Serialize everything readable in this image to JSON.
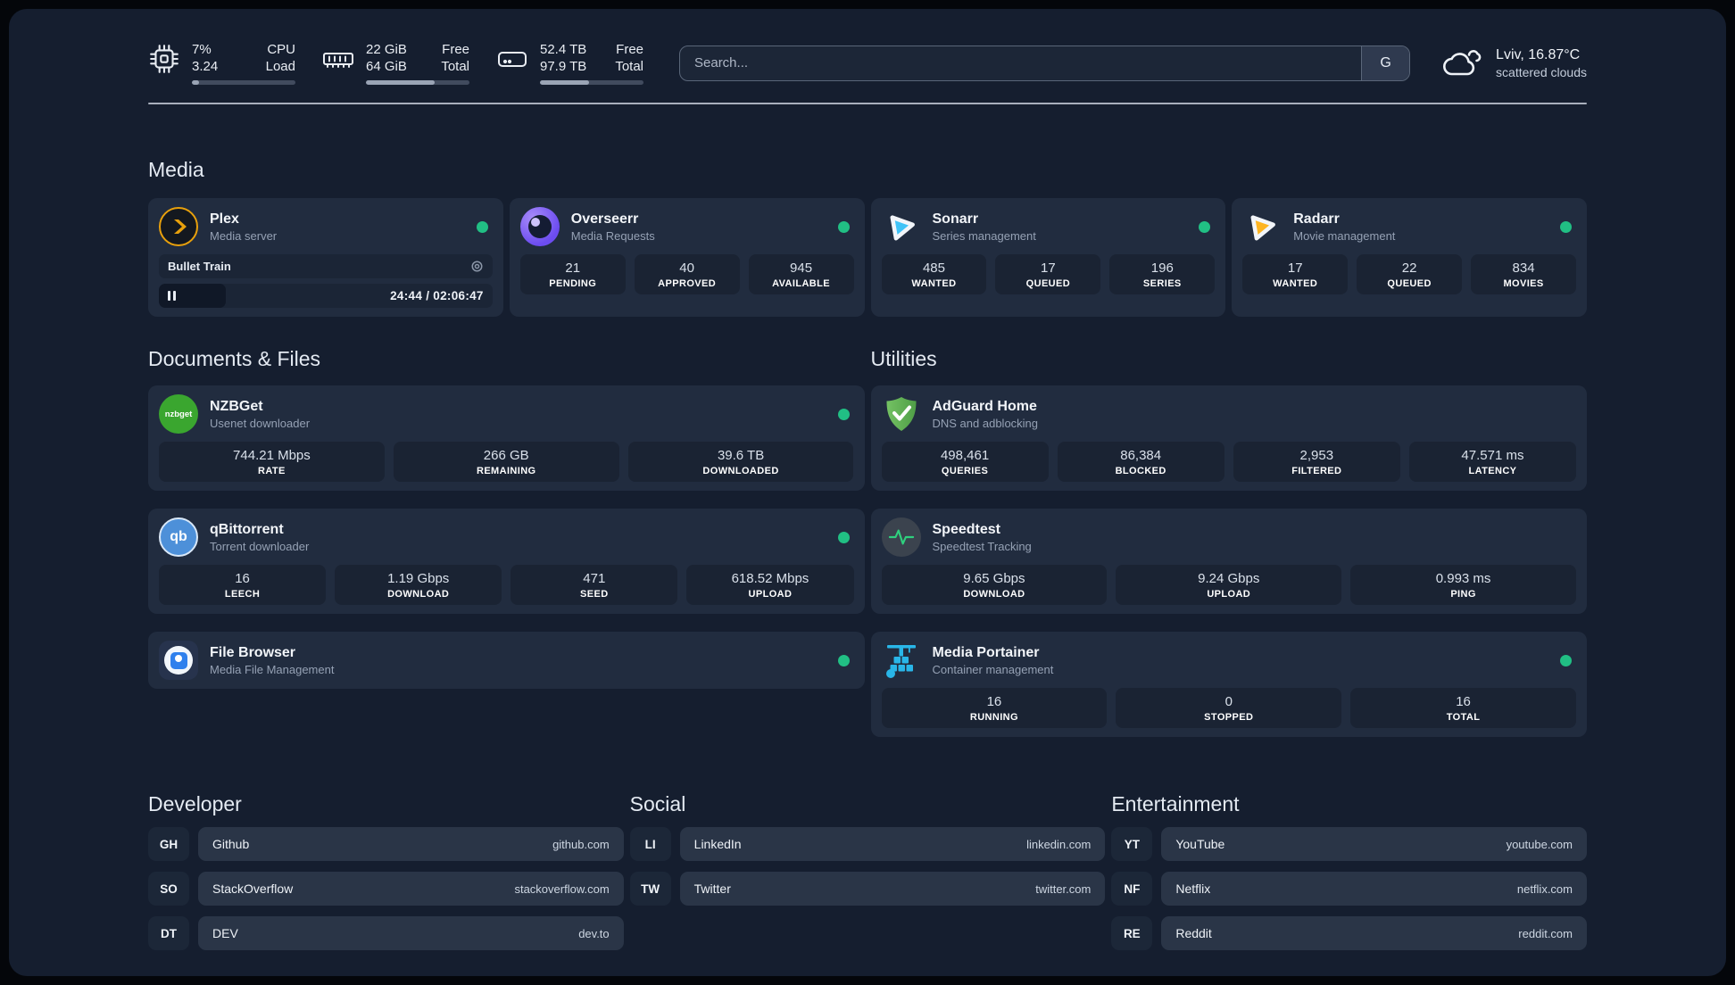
{
  "colors": {
    "accent_green": "#21bf84",
    "plex_amber": "#e8a00c",
    "sonarr_blue": "#3fc3f7",
    "radarr_yellow": "#fdb421",
    "adguard_green": "#63b266",
    "portainer_blue": "#29b6e8",
    "qbittorrent_blue": "#4d90d9",
    "nzbget_green": "#3aa62f",
    "overseerr_purple": "#8b6cf7",
    "speedtest_green": "#2fd07e"
  },
  "header": {
    "cpu": {
      "value_top": "7%",
      "value_bottom": "3.24",
      "label_top": "CPU",
      "label_bottom": "Load",
      "progress_pct": 7
    },
    "ram": {
      "value_top": "22 GiB",
      "value_bottom": "64 GiB",
      "label_top": "Free",
      "label_bottom": "Total",
      "progress_pct": 66
    },
    "disk": {
      "value_top": "52.4 TB",
      "value_bottom": "97.9 TB",
      "label_top": "Free",
      "label_bottom": "Total",
      "progress_pct": 47
    },
    "search": {
      "placeholder": "Search...",
      "engine_label": "G"
    },
    "weather": {
      "location": "Lviv, 16.87°C",
      "condition": "scattered clouds"
    }
  },
  "media": {
    "title": "Media",
    "plex": {
      "name": "Plex",
      "desc": "Media server",
      "now_playing": "Bullet Train",
      "time": "24:44 / 02:06:47",
      "progress_pct": 20
    },
    "overseerr": {
      "name": "Overseerr",
      "desc": "Media Requests",
      "stats": [
        {
          "value": "21",
          "label": "PENDING"
        },
        {
          "value": "40",
          "label": "APPROVED"
        },
        {
          "value": "945",
          "label": "AVAILABLE"
        }
      ]
    },
    "sonarr": {
      "name": "Sonarr",
      "desc": "Series management",
      "stats": [
        {
          "value": "485",
          "label": "WANTED"
        },
        {
          "value": "17",
          "label": "QUEUED"
        },
        {
          "value": "196",
          "label": "SERIES"
        }
      ]
    },
    "radarr": {
      "name": "Radarr",
      "desc": "Movie management",
      "stats": [
        {
          "value": "17",
          "label": "WANTED"
        },
        {
          "value": "22",
          "label": "QUEUED"
        },
        {
          "value": "834",
          "label": "MOVIES"
        }
      ]
    }
  },
  "documents": {
    "title": "Documents & Files",
    "nzbget": {
      "name": "NZBGet",
      "desc": "Usenet downloader",
      "icon_text": "nzbget",
      "stats": [
        {
          "value": "744.21 Mbps",
          "label": "RATE"
        },
        {
          "value": "266 GB",
          "label": "REMAINING"
        },
        {
          "value": "39.6 TB",
          "label": "DOWNLOADED"
        }
      ]
    },
    "qbittorrent": {
      "name": "qBittorrent",
      "desc": "Torrent downloader",
      "icon_text": "qb",
      "stats": [
        {
          "value": "16",
          "label": "LEECH"
        },
        {
          "value": "1.19 Gbps",
          "label": "DOWNLOAD"
        },
        {
          "value": "471",
          "label": "SEED"
        },
        {
          "value": "618.52 Mbps",
          "label": "UPLOAD"
        }
      ]
    },
    "filebrowser": {
      "name": "File Browser",
      "desc": "Media File Management"
    }
  },
  "utilities": {
    "title": "Utilities",
    "adguard": {
      "name": "AdGuard Home",
      "desc": "DNS and adblocking",
      "stats": [
        {
          "value": "498,461",
          "label": "QUERIES"
        },
        {
          "value": "86,384",
          "label": "BLOCKED"
        },
        {
          "value": "2,953",
          "label": "FILTERED"
        },
        {
          "value": "47.571 ms",
          "label": "LATENCY"
        }
      ]
    },
    "speedtest": {
      "name": "Speedtest",
      "desc": "Speedtest Tracking",
      "stats": [
        {
          "value": "9.65 Gbps",
          "label": "DOWNLOAD"
        },
        {
          "value": "9.24 Gbps",
          "label": "UPLOAD"
        },
        {
          "value": "0.993 ms",
          "label": "PING"
        }
      ]
    },
    "portainer": {
      "name": "Media Portainer",
      "desc": "Container management",
      "stats": [
        {
          "value": "16",
          "label": "RUNNING"
        },
        {
          "value": "0",
          "label": "STOPPED"
        },
        {
          "value": "16",
          "label": "TOTAL"
        }
      ]
    }
  },
  "links": {
    "developer": {
      "title": "Developer",
      "items": [
        {
          "abbr": "GH",
          "name": "Github",
          "url": "github.com"
        },
        {
          "abbr": "SO",
          "name": "StackOverflow",
          "url": "stackoverflow.com"
        },
        {
          "abbr": "DT",
          "name": "DEV",
          "url": "dev.to"
        }
      ]
    },
    "social": {
      "title": "Social",
      "items": [
        {
          "abbr": "LI",
          "name": "LinkedIn",
          "url": "linkedin.com"
        },
        {
          "abbr": "TW",
          "name": "Twitter",
          "url": "twitter.com"
        }
      ]
    },
    "entertainment": {
      "title": "Entertainment",
      "items": [
        {
          "abbr": "YT",
          "name": "YouTube",
          "url": "youtube.com"
        },
        {
          "abbr": "NF",
          "name": "Netflix",
          "url": "netflix.com"
        },
        {
          "abbr": "RE",
          "name": "Reddit",
          "url": "reddit.com"
        }
      ]
    }
  }
}
